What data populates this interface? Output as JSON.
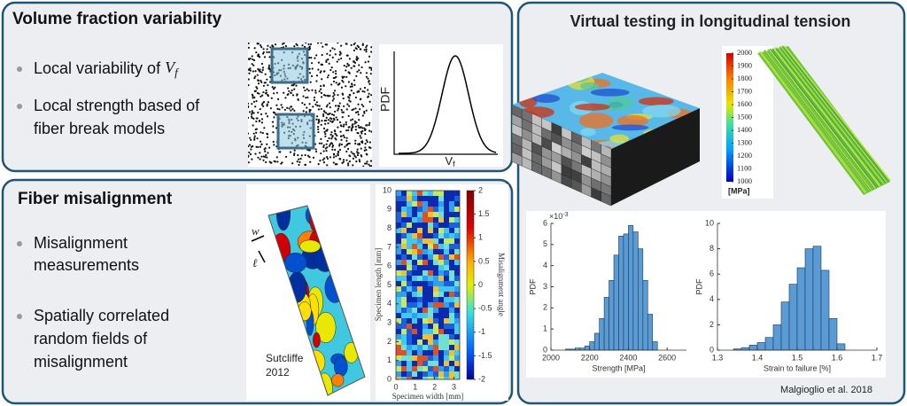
{
  "volume_fraction": {
    "title": "Volume fraction variability",
    "bullets": [
      {
        "text": "Local variability of ",
        "symbol": "V",
        "subscript": "f"
      },
      {
        "lines": [
          "Local strength based of",
          "fiber break models"
        ]
      }
    ],
    "pdf_plot": {
      "ylabel": "PDF",
      "xlabel": "V",
      "xlabel_subscript": "f"
    }
  },
  "misalignment": {
    "title": "Fiber misalignment",
    "bullets": [
      {
        "lines": [
          "Misalignment",
          "measurements"
        ]
      },
      {
        "lines": [
          "Spatially correlated",
          "random fields of",
          "misalignment"
        ]
      }
    ],
    "sketch_labels": [
      "w",
      "ℓ"
    ],
    "source": [
      "Sutcliffe",
      "2012"
    ],
    "map": {
      "ylabel": "Specimen length [mm]",
      "yticks": [
        0,
        1,
        2,
        3,
        4,
        5,
        6,
        7,
        8,
        9,
        10
      ],
      "xlabel": "Specimen width [mm]",
      "xticks": [
        0,
        1,
        2,
        3
      ],
      "colorbar_label": "Misalignment angle",
      "colorbar_ticks": [
        2,
        1.5,
        1,
        0.5,
        0,
        -0.5,
        -1,
        -1.5,
        -2
      ]
    }
  },
  "virtual_testing": {
    "title": "Virtual testing in longitudinal tension",
    "colorbar_ticks": [
      2000,
      1900,
      1800,
      1700,
      1600,
      1500,
      1400,
      1300,
      1200,
      1100,
      1000
    ],
    "colorbar_unit": "[MPa]",
    "citation": "Malgioglio et al. 2018"
  },
  "chart_data": [
    {
      "type": "histogram",
      "xlabel": "Strength [MPa]",
      "ylabel": "PDF",
      "y_multiplier": "×10",
      "y_multiplier_exponent": "-3",
      "bins": [
        2075,
        2100,
        2125,
        2150,
        2175,
        2200,
        2225,
        2250,
        2275,
        2300,
        2325,
        2350,
        2375,
        2400,
        2425,
        2450,
        2475,
        2500,
        2525,
        2550
      ],
      "values": [
        0.05,
        0.05,
        0.1,
        0.1,
        0.2,
        0.4,
        0.8,
        1.5,
        2.5,
        3.3,
        4.5,
        5.4,
        5.5,
        5.9,
        5.6,
        4.8,
        3.3,
        1.7,
        0.4
      ],
      "color": "#5b9bd5",
      "xlim": [
        2000,
        2700
      ],
      "ylim": [
        0,
        6
      ],
      "xticks": [
        2000,
        2200,
        2400,
        2600
      ],
      "yticks": [
        0,
        1,
        2,
        3,
        4,
        5,
        6
      ]
    },
    {
      "type": "histogram",
      "xlabel": "Strain to failure [%]",
      "ylabel": "PDF",
      "bins": [
        1.34,
        1.36,
        1.38,
        1.4,
        1.42,
        1.44,
        1.46,
        1.48,
        1.5,
        1.52,
        1.54,
        1.56,
        1.58,
        1.6,
        1.62
      ],
      "values": [
        0.1,
        0.2,
        0.4,
        0.6,
        1.0,
        2.0,
        3.8,
        5.2,
        6.5,
        8.0,
        8.2,
        6.3,
        2.5,
        0.5
      ],
      "color": "#5b9bd5",
      "xlim": [
        1.3,
        1.7
      ],
      "ylim": [
        0,
        10
      ],
      "xticks": [
        1.3,
        1.4,
        1.5,
        1.6,
        1.7
      ],
      "yticks": [
        0,
        2,
        4,
        6,
        8,
        10
      ]
    }
  ]
}
